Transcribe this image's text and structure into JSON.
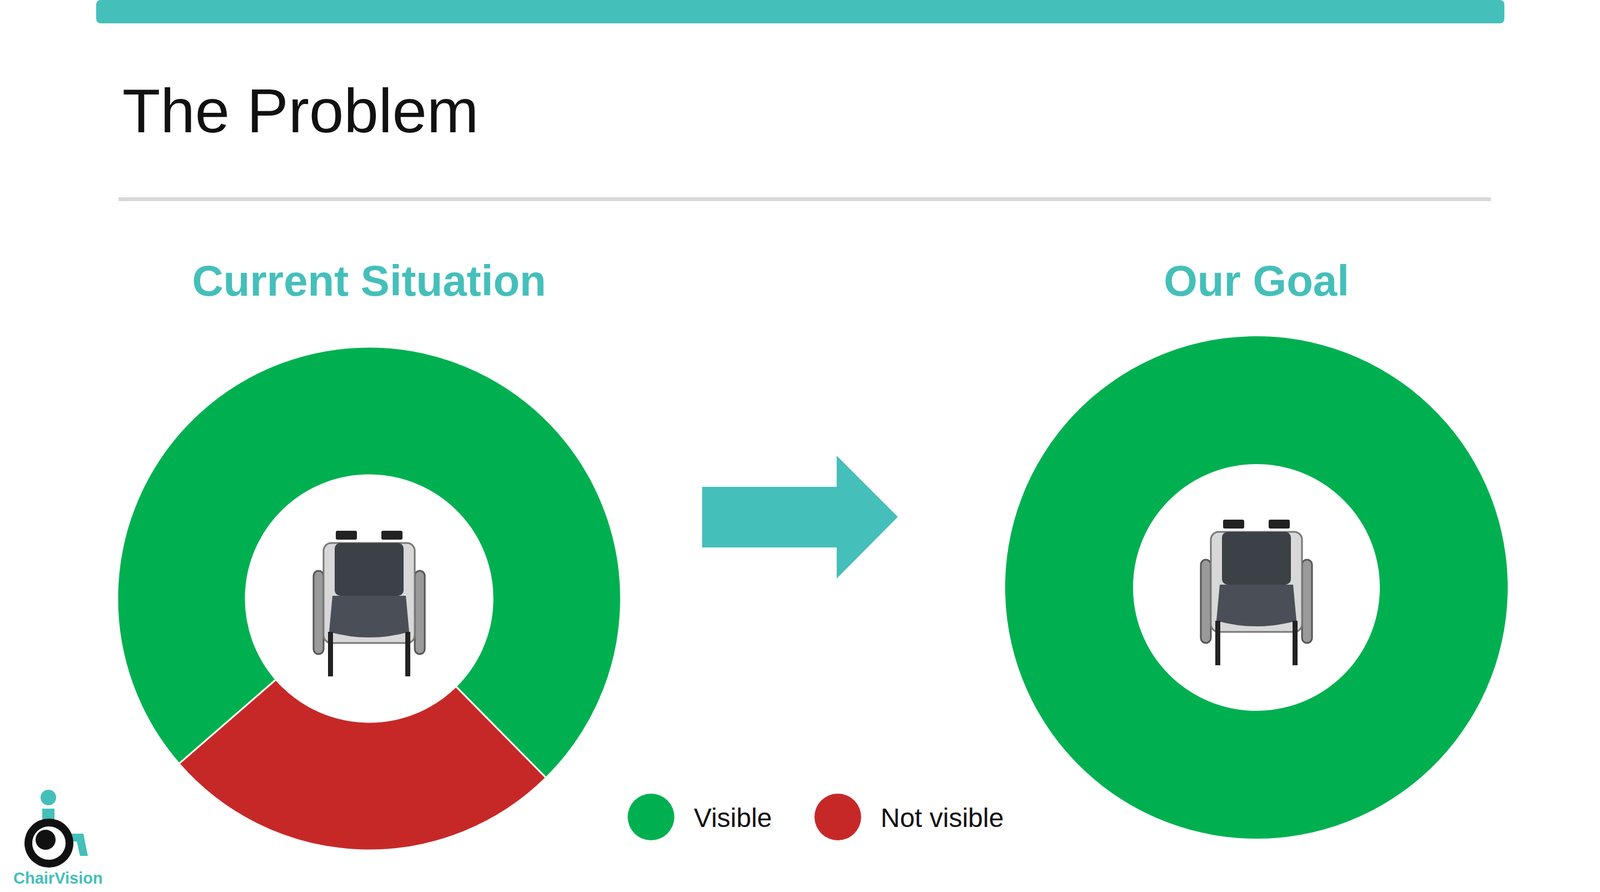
{
  "slide_title": "The Problem",
  "logo": "ChairVision",
  "chart_data": [
    {
      "type": "pie",
      "title": "Current Situation",
      "categories": [
        "Visible",
        "Not visible"
      ],
      "values": [
        74,
        26
      ],
      "colors": [
        "#00b050",
        "#c62828"
      ],
      "legend": "bottom"
    },
    {
      "type": "pie",
      "title": "Our Goal",
      "categories": [
        "Visible",
        "Not visible"
      ],
      "values": [
        100,
        0
      ],
      "colors": [
        "#00b050",
        "#c62828"
      ]
    }
  ]
}
